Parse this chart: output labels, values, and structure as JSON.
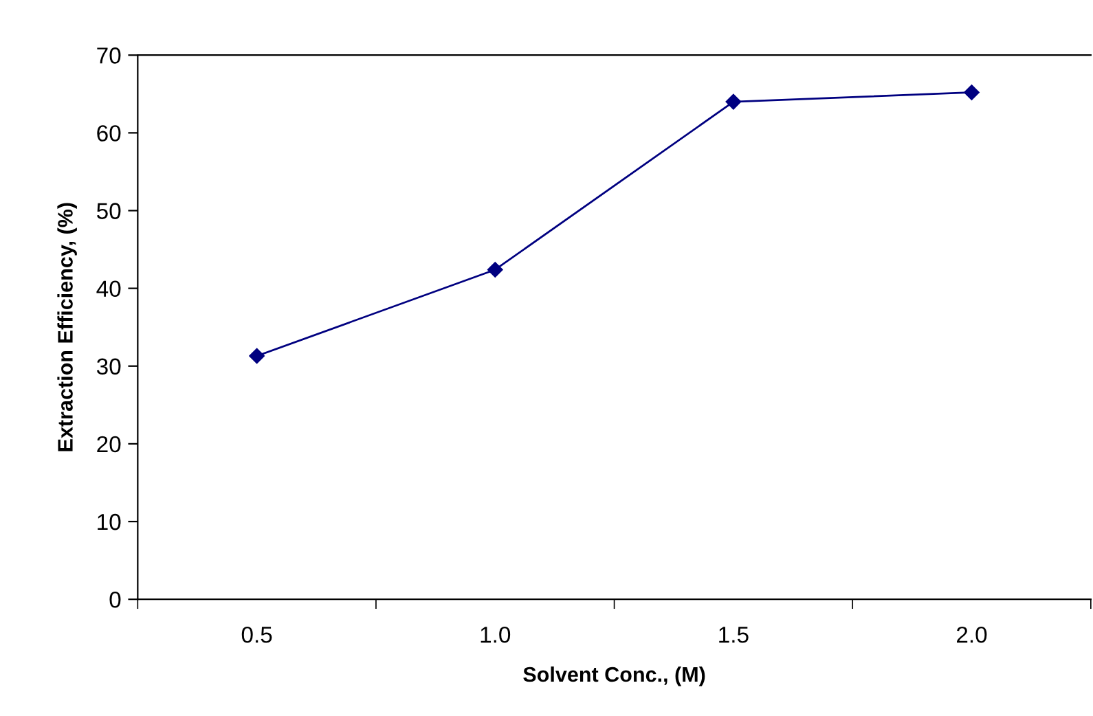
{
  "chart_data": {
    "type": "line",
    "xlabel": "Solvent Conc., (M)",
    "ylabel": "Extraction Efficiency, (%)",
    "categories": [
      "0.5",
      "1.0",
      "1.5",
      "2.0"
    ],
    "series": [
      {
        "color": "#000080",
        "values": [
          31.3,
          42.4,
          64.0,
          65.2
        ]
      }
    ],
    "ylim": [
      0,
      70
    ],
    "yticks": [
      0,
      10,
      20,
      30,
      40,
      50,
      60,
      70
    ],
    "grid": false,
    "legend": false,
    "marker": "diamond",
    "line_style": "solid"
  }
}
